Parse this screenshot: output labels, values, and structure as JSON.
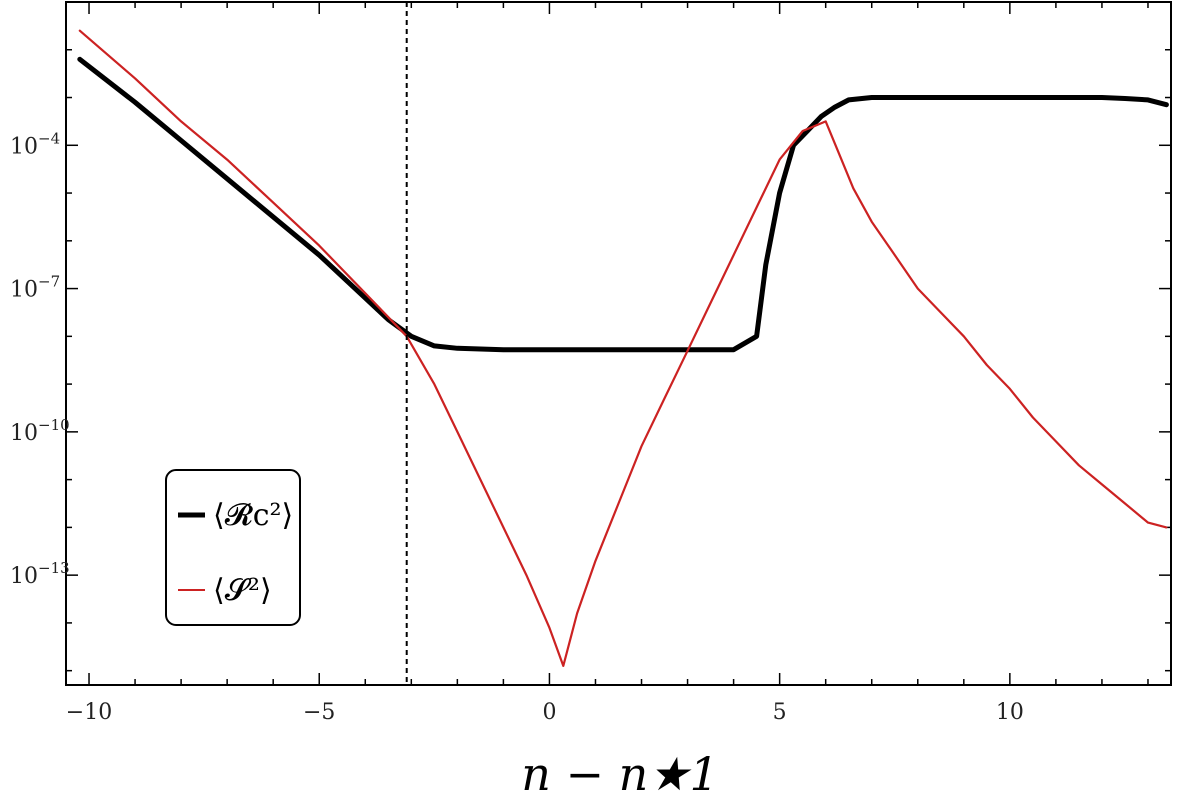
{
  "chart_data": {
    "type": "line",
    "title": "",
    "xlabel": "n − n★1",
    "ylabel": "",
    "xlim": [
      -10.5,
      13.5
    ],
    "ylim_log10": [
      -15.3,
      -1.0
    ],
    "y_scale": "log",
    "x_ticks": [
      {
        "value": -10,
        "label": "−10"
      },
      {
        "value": -5,
        "label": "−5"
      },
      {
        "value": 0,
        "label": "0"
      },
      {
        "value": 5,
        "label": "5"
      },
      {
        "value": 10,
        "label": "10"
      }
    ],
    "y_ticks": [
      {
        "value": -4,
        "base": "10",
        "exp": "−4"
      },
      {
        "value": -7,
        "base": "10",
        "exp": "−7"
      },
      {
        "value": -10,
        "base": "10",
        "exp": "−10"
      },
      {
        "value": -13,
        "base": "10",
        "exp": "−13"
      }
    ],
    "vline_x": -3.1,
    "grid": false,
    "legend_position": "bottom-left",
    "series": [
      {
        "name": "⟨𝓡c²⟩",
        "color": "#000000",
        "x": [
          -10.2,
          -9.0,
          -8.0,
          -7.0,
          -6.0,
          -5.0,
          -4.0,
          -3.5,
          -3.0,
          -2.5,
          -2.0,
          -1.0,
          0.0,
          1.0,
          2.0,
          3.0,
          4.0,
          4.5,
          4.7,
          5.0,
          5.3,
          5.6,
          5.9,
          6.2,
          6.5,
          7.0,
          8.0,
          9.0,
          10.0,
          11.0,
          12.0,
          12.5,
          13.0,
          13.4
        ],
        "log10y": [
          -2.2,
          -3.1,
          -3.9,
          -4.7,
          -5.5,
          -6.3,
          -7.2,
          -7.65,
          -8.0,
          -8.2,
          -8.25,
          -8.28,
          -8.28,
          -8.28,
          -8.28,
          -8.28,
          -8.28,
          -8.0,
          -6.5,
          -5.0,
          -4.0,
          -3.7,
          -3.4,
          -3.2,
          -3.05,
          -3.0,
          -3.0,
          -3.0,
          -3.0,
          -3.0,
          -3.0,
          -3.02,
          -3.05,
          -3.15
        ]
      },
      {
        "name": "⟨𝓢²⟩",
        "color": "#cc2222",
        "x": [
          -10.2,
          -9.0,
          -8.0,
          -7.0,
          -6.0,
          -5.0,
          -4.0,
          -3.1,
          -2.5,
          -2.0,
          -1.5,
          -1.0,
          -0.5,
          0.0,
          0.3,
          0.6,
          1.0,
          1.5,
          2.0,
          2.5,
          3.0,
          3.5,
          4.0,
          4.5,
          5.0,
          5.5,
          6.0,
          6.3,
          6.6,
          7.0,
          7.5,
          8.0,
          8.5,
          9.0,
          9.5,
          10.0,
          10.5,
          11.0,
          11.5,
          12.0,
          12.5,
          13.0,
          13.4
        ],
        "log10y": [
          -1.6,
          -2.6,
          -3.5,
          -4.3,
          -5.2,
          -6.1,
          -7.1,
          -8.0,
          -9.0,
          -10.0,
          -11.0,
          -12.0,
          -13.0,
          -14.1,
          -14.9,
          -13.8,
          -12.7,
          -11.5,
          -10.3,
          -9.3,
          -8.3,
          -7.3,
          -6.3,
          -5.3,
          -4.3,
          -3.7,
          -3.5,
          -4.2,
          -4.9,
          -5.6,
          -6.3,
          -7.0,
          -7.5,
          -8.0,
          -8.6,
          -9.1,
          -9.7,
          -10.2,
          -10.7,
          -11.1,
          -11.5,
          -11.9,
          -12.0
        ]
      }
    ]
  }
}
